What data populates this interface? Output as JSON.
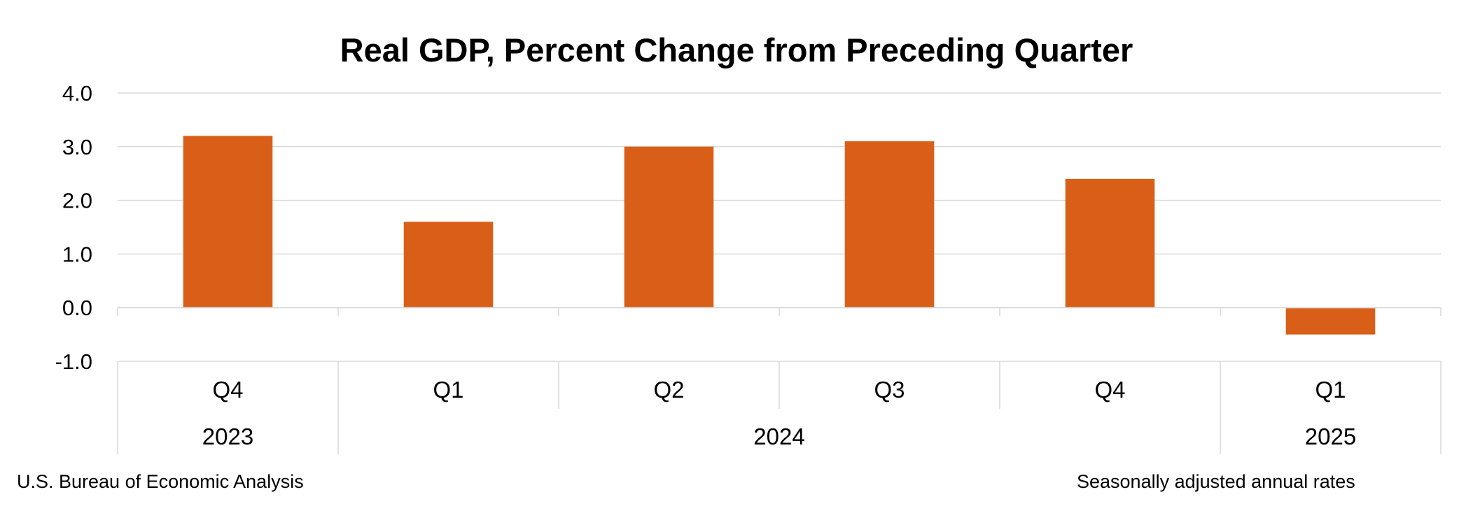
{
  "chart_data": {
    "type": "bar",
    "title": "Real GDP, Percent Change from Preceding Quarter",
    "categories": [
      "Q4",
      "Q1",
      "Q2",
      "Q3",
      "Q4",
      "Q1"
    ],
    "groups": [
      {
        "label": "2023",
        "count": 1
      },
      {
        "label": "2024",
        "count": 4
      },
      {
        "label": "2025",
        "count": 1
      }
    ],
    "values": [
      3.2,
      1.6,
      3.0,
      3.1,
      2.4,
      -0.5
    ],
    "ylim": [
      -1.0,
      4.0
    ],
    "yticks": [
      "4.0",
      "3.0",
      "2.0",
      "1.0",
      "0.0",
      "-1.0"
    ],
    "ytick_values": [
      4.0,
      3.0,
      2.0,
      1.0,
      0.0,
      -1.0
    ],
    "grid": true,
    "legend": "none",
    "bar_color": "#D95F18",
    "grid_color": "#D9D9D9"
  },
  "notes": {
    "source": "U.S. Bureau of Economic Analysis",
    "rates": "Seasonally adjusted annual rates"
  }
}
